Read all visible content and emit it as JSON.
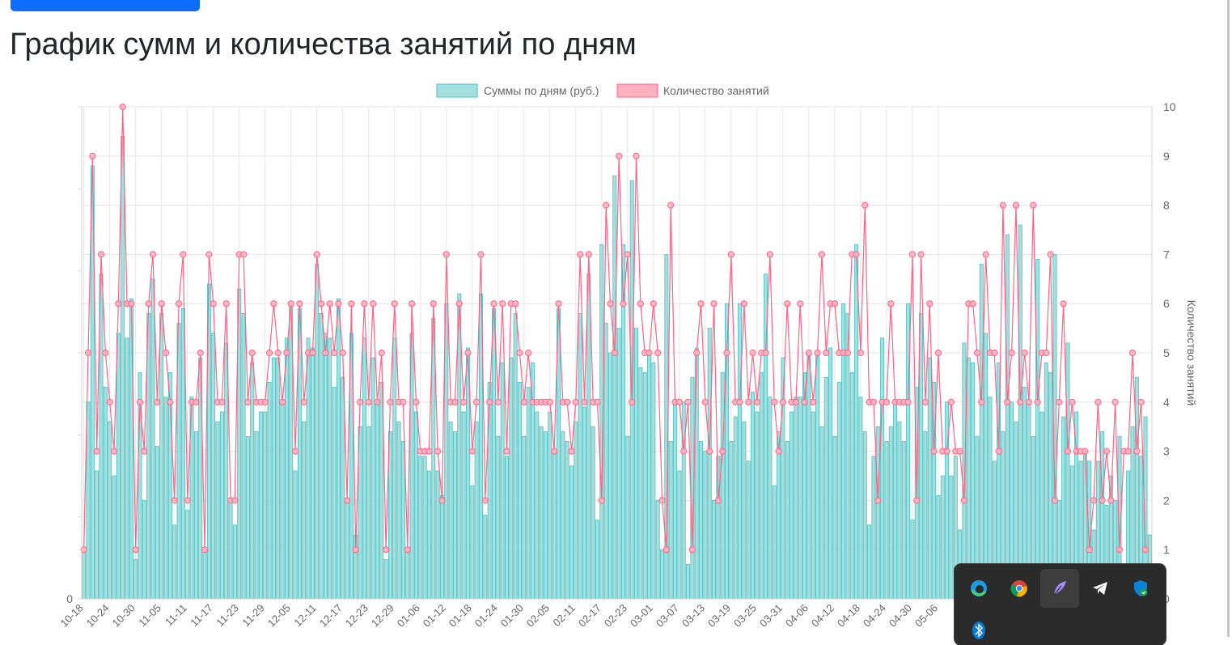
{
  "page": {
    "title": "График сумм и количества занятий по дням"
  },
  "tray": {
    "icons": [
      "edge-icon",
      "chrome-icon",
      "feather-icon",
      "telegram-icon",
      "security-shield-icon",
      "bluetooth-icon"
    ]
  },
  "chart_data": {
    "type": "bar",
    "legend_position": "top",
    "grid": true,
    "y_left_ticks": [
      "0"
    ],
    "y_right_label": "Количество занятий",
    "y_right_range": [
      0,
      10
    ],
    "y_right_ticks": [
      "0",
      "1",
      "2",
      "3",
      "4",
      "5",
      "6",
      "7",
      "8",
      "9",
      "10"
    ],
    "x_tick_labels": [
      "10-18",
      "10-24",
      "10-30",
      "11-05",
      "11-11",
      "11-17",
      "11-23",
      "11-29",
      "12-05",
      "12-11",
      "12-17",
      "12-23",
      "12-29",
      "01-06",
      "01-12",
      "01-18",
      "01-24",
      "01-30",
      "02-05",
      "02-11",
      "02-17",
      "02-23",
      "03-01",
      "03-07",
      "03-13",
      "03-19",
      "03-25",
      "03-31",
      "04-06",
      "04-12",
      "04-18",
      "04-24",
      "04-30",
      "05-06"
    ],
    "series": [
      {
        "name": "Суммы по дням (руб.)",
        "type": "bar",
        "axis": "left",
        "color": "#4bc0c0",
        "fill": "#a5dfdf",
        "values": [
          1,
          4,
          8.8,
          2.6,
          6.6,
          4.3,
          3.6,
          2.5,
          5.4,
          9.4,
          5.3,
          6.1,
          0.8,
          4.6,
          2,
          5.8,
          6.5,
          3.1,
          5.8,
          4.1,
          4.6,
          1.5,
          5.6,
          5.9,
          1.8,
          4.1,
          3.4,
          4.9,
          1,
          6.4,
          5.4,
          3.6,
          3.8,
          5.2,
          2,
          1.5,
          6.3,
          5.8,
          3.3,
          4.8,
          3.4,
          3.8,
          3.8,
          4.4,
          4.9,
          4.9,
          4,
          5.3,
          6,
          2.6,
          5.9,
          3.6,
          5.3,
          5.1,
          6.8,
          5.8,
          5.4,
          5.3,
          4.3,
          6.1,
          4.5,
          2,
          5.4,
          1.3,
          3.5,
          5.3,
          3.5,
          4.9,
          4,
          4.4,
          0.8,
          3.4,
          5.3,
          3.6,
          3.2,
          1,
          5.4,
          3.8,
          2.9,
          2.9,
          2.6,
          5.7,
          2.6,
          2.1,
          6,
          3.6,
          3.4,
          6.2,
          3.8,
          5.1,
          2.3,
          3.6,
          6.2,
          1.7,
          4.4,
          5.9,
          3.3,
          4.8,
          2.9,
          4.9,
          5.8,
          4.4,
          3.3,
          4.3,
          4.8,
          3.8,
          3.5,
          3.4,
          3.8,
          3,
          5.9,
          3.4,
          3.2,
          2.7,
          3.6,
          5.8,
          3.9,
          6.6,
          3.5,
          1.6,
          7.2,
          5.6,
          5,
          8.6,
          5.5,
          7.2,
          3.3,
          8.5,
          5.5,
          4.7,
          4.6,
          5,
          4.8,
          2,
          1,
          7,
          3.2,
          4,
          2.6,
          4,
          0.7,
          4.5,
          5.1,
          3.2,
          3,
          5.5,
          2,
          2.9,
          4.6,
          6,
          3.2,
          3.7,
          6,
          3.6,
          2.8,
          4.2,
          3.8,
          4.6,
          6.6,
          4.1,
          2.3,
          3.4,
          4.9,
          3.2,
          3.8,
          4.1,
          4.1,
          4.6,
          5,
          3.8,
          5,
          3.5,
          4.5,
          5.1,
          3.3,
          4.4,
          6,
          5.8,
          4.6,
          7.2,
          4.1,
          3.4,
          1.5,
          2.9,
          3.5,
          5.3,
          3.2,
          3.5,
          4,
          3.6,
          3.2,
          6,
          1.6,
          4.3,
          5.8,
          3.4,
          4.9,
          4.4,
          2.1,
          2.5,
          4,
          2.5,
          2.9,
          1.4,
          5.2,
          4.9,
          4.8,
          3.3,
          6.8,
          5.4,
          4.1,
          2.8,
          4.8,
          3.4,
          7.4,
          4,
          3.6,
          7.6,
          4.3,
          4,
          3.3,
          6.9,
          3.8,
          4.8,
          4.6,
          7,
          2,
          3.7,
          5.2,
          2.7,
          3.8,
          2.8,
          3,
          2.8,
          1.4,
          2.8,
          3.4,
          1.9,
          2.5,
          2,
          3.3,
          0.7,
          2.6,
          3.5,
          4.5,
          2.9,
          3.7,
          1.3
        ]
      },
      {
        "name": "Количество занятий",
        "type": "line",
        "axis": "right",
        "color": "#ff6384",
        "fill": "#ffb1c1",
        "values": [
          1,
          5,
          9,
          3,
          7,
          5,
          4,
          3,
          6,
          10,
          6,
          6,
          1,
          4,
          3,
          6,
          7,
          4,
          6,
          5,
          4,
          2,
          6,
          7,
          2,
          4,
          4,
          5,
          1,
          7,
          6,
          4,
          4,
          6,
          2,
          2,
          7,
          7,
          4,
          5,
          4,
          4,
          4,
          5,
          6,
          5,
          4,
          5,
          6,
          3,
          6,
          4,
          5,
          5,
          7,
          6,
          5,
          6,
          5,
          6,
          5,
          2,
          6,
          1,
          4,
          6,
          4,
          6,
          4,
          5,
          1,
          4,
          6,
          4,
          4,
          1,
          6,
          4,
          3,
          3,
          3,
          6,
          3,
          2,
          7,
          4,
          4,
          6,
          4,
          5,
          3,
          4,
          7,
          2,
          4,
          6,
          4,
          6,
          3,
          6,
          6,
          5,
          4,
          5,
          4,
          4,
          4,
          4,
          4,
          3,
          6,
          4,
          4,
          3,
          4,
          7,
          4,
          7,
          4,
          4,
          2,
          8,
          6,
          5,
          9,
          6,
          7,
          4,
          9,
          6,
          5,
          5,
          6,
          5,
          2,
          1,
          8,
          4,
          4,
          3,
          4,
          1,
          5,
          6,
          4,
          3,
          6,
          2,
          3,
          5,
          7,
          4,
          4,
          6,
          4,
          5,
          4,
          5,
          5,
          7,
          4,
          3,
          4,
          6,
          4,
          4,
          6,
          4,
          5,
          4,
          5,
          7,
          5,
          6,
          6,
          5,
          5,
          5,
          7,
          7,
          5,
          8,
          4,
          4,
          2,
          4,
          4,
          6,
          4,
          4,
          4,
          4,
          7,
          2,
          7,
          4,
          6,
          3,
          5,
          3,
          3,
          4,
          3,
          3,
          2,
          6,
          6,
          5,
          4,
          7,
          5,
          5,
          3,
          8,
          4,
          5,
          8,
          4,
          5,
          4,
          8,
          4,
          5,
          5,
          7,
          2,
          4,
          6,
          3,
          4,
          3,
          3,
          3,
          1,
          2,
          4,
          2,
          3,
          2,
          4,
          1,
          3,
          3,
          5,
          3,
          4,
          1
        ]
      }
    ]
  }
}
